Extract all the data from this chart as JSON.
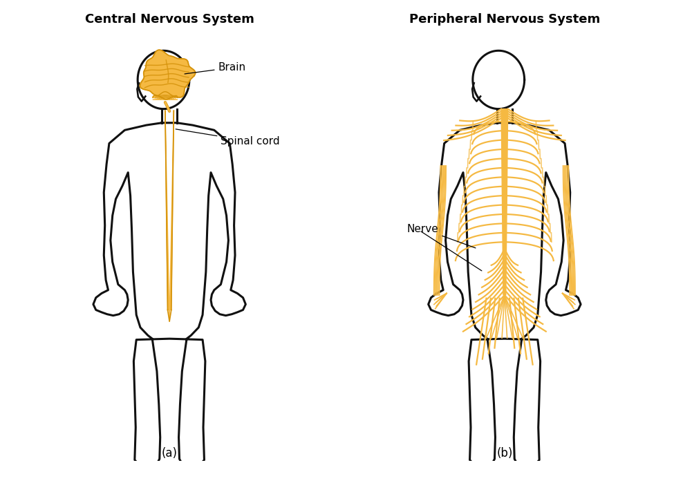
{
  "title_left": "Central Nervous System",
  "title_right": "Peripheral Nervous System",
  "label_a": "(a)",
  "label_b": "(b)",
  "label_brain": "Brain",
  "label_spinal": "Spinal cord",
  "label_nerve": "Nerve",
  "nerve_color": "#F5B942",
  "nerve_color_dark": "#D4920A",
  "body_outline_color": "#111111",
  "body_lw": 2.2,
  "nerve_lw": 1.6,
  "bg_color": "#ffffff",
  "title_fontsize": 13,
  "label_fontsize": 11,
  "sublabel_fontsize": 12
}
